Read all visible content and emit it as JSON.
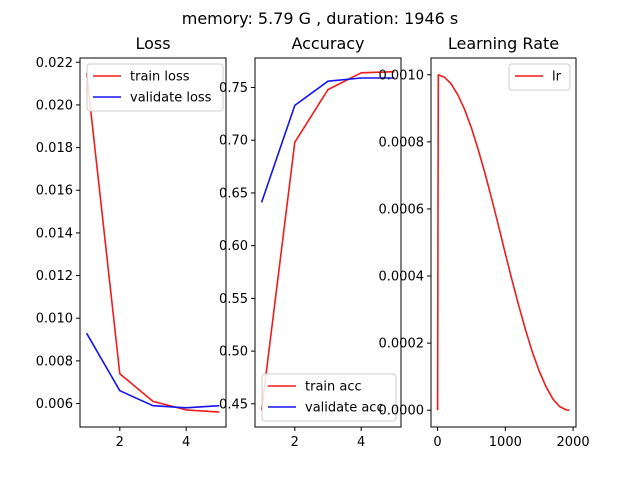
{
  "suptitle": "memory: 5.79 G , duration: 1946 s",
  "colors": {
    "red": "#ee1c1c",
    "blue": "#1414ee",
    "axis": "#000000"
  },
  "chart_data": [
    {
      "type": "line",
      "title": "Loss",
      "xlim": [
        0.8,
        5.2
      ],
      "ylim": [
        0.0049,
        0.0222
      ],
      "xticks": [
        2,
        4
      ],
      "xtick_labels": [
        "2",
        "4"
      ],
      "yticks": [
        0.006,
        0.008,
        0.01,
        0.012,
        0.014,
        0.016,
        0.018,
        0.02,
        0.022
      ],
      "ytick_labels": [
        "0.006",
        "0.008",
        "0.010",
        "0.012",
        "0.014",
        "0.016",
        "0.018",
        "0.020",
        "0.022"
      ],
      "legend_loc": "upper right",
      "series": [
        {
          "name": "train loss",
          "color": "#ee1c1c",
          "x": [
            1,
            2,
            3,
            4,
            5
          ],
          "y": [
            0.0215,
            0.0074,
            0.0061,
            0.0057,
            0.0056
          ]
        },
        {
          "name": "validate loss",
          "color": "#1414ee",
          "x": [
            1,
            2,
            3,
            4,
            5
          ],
          "y": [
            0.0093,
            0.0066,
            0.0059,
            0.0058,
            0.0059
          ]
        }
      ]
    },
    {
      "type": "line",
      "title": "Accuracy",
      "xlim": [
        0.8,
        5.2
      ],
      "ylim": [
        0.428,
        0.778
      ],
      "xticks": [
        2,
        4
      ],
      "xtick_labels": [
        "2",
        "4"
      ],
      "yticks": [
        0.45,
        0.5,
        0.55,
        0.6,
        0.65,
        0.7,
        0.75
      ],
      "ytick_labels": [
        "0.45",
        "0.50",
        "0.55",
        "0.60",
        "0.65",
        "0.70",
        "0.75"
      ],
      "legend_loc": "lower right",
      "series": [
        {
          "name": "train acc",
          "color": "#ee1c1c",
          "x": [
            1,
            2,
            3,
            4,
            5
          ],
          "y": [
            0.444,
            0.698,
            0.748,
            0.764,
            0.765
          ]
        },
        {
          "name": "validate acc",
          "color": "#1414ee",
          "x": [
            1,
            2,
            3,
            4,
            5
          ],
          "y": [
            0.641,
            0.733,
            0.756,
            0.759,
            0.759
          ]
        }
      ]
    },
    {
      "type": "line",
      "title": "Learning Rate",
      "xlim": [
        -97,
        2043
      ],
      "ylim": [
        -5e-05,
        0.00105
      ],
      "xticks": [
        0,
        1000,
        2000
      ],
      "xtick_labels": [
        "0",
        "1000",
        "2000"
      ],
      "yticks": [
        0.0,
        0.0002,
        0.0004,
        0.0006,
        0.0008,
        0.001
      ],
      "ytick_labels": [
        "0.0000",
        "0.0002",
        "0.0004",
        "0.0006",
        "0.0008",
        "0.0010"
      ],
      "legend_loc": "upper right",
      "series": [
        {
          "name": "lr",
          "color": "#ee1c1c",
          "x": [
            0,
            10,
            100,
            200,
            300,
            400,
            500,
            600,
            700,
            800,
            900,
            1000,
            1100,
            1200,
            1300,
            1400,
            1500,
            1600,
            1700,
            1800,
            1900,
            1946
          ],
          "y": [
            0.0,
            0.001,
            0.000993,
            0.000973,
            0.00094,
            0.000896,
            0.000841,
            0.000777,
            0.000706,
            0.000629,
            0.000549,
            0.000467,
            0.000387,
            0.00031,
            0.000238,
            0.000173,
            0.000117,
            7e-05,
            3.4e-05,
            1.1e-05,
            1e-06,
            0.0
          ]
        }
      ]
    }
  ]
}
